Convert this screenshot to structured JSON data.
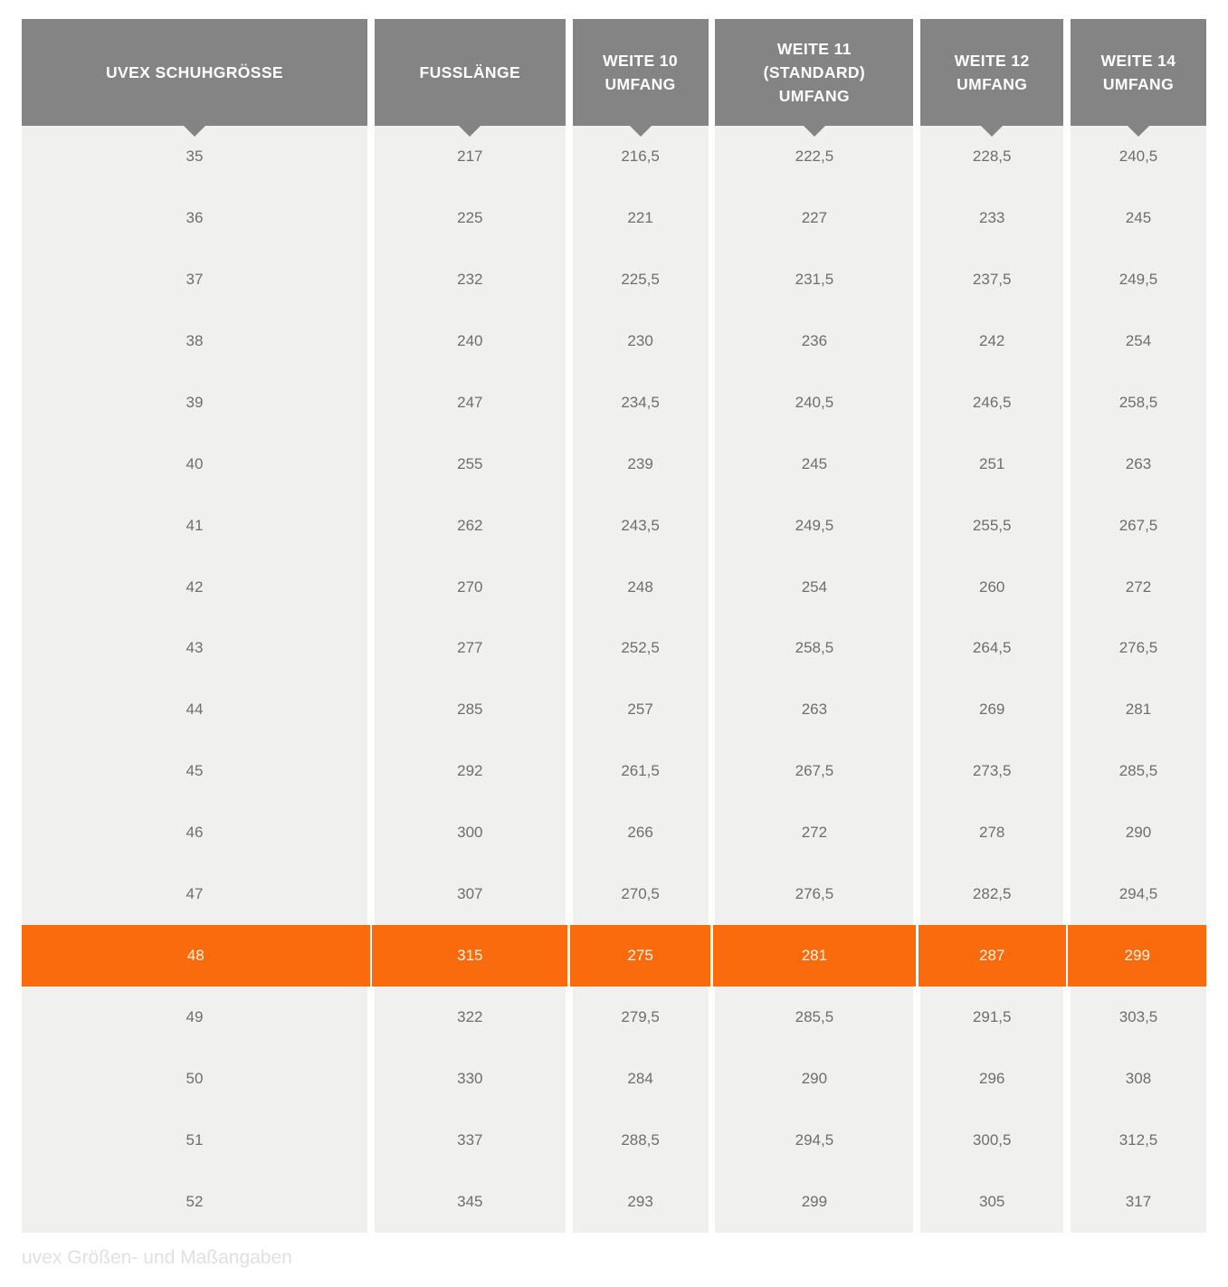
{
  "colors": {
    "page-bg": "#ffffff",
    "header-bg": "#848484",
    "header-text": "#ffffff",
    "row-bg": "#f0f0ef",
    "cell-text": "#6e6e6e",
    "highlight-bg": "#f96b0c",
    "highlight-text": "#fdf6ee",
    "caption-text": "#e0e0e0"
  },
  "table": {
    "headers": [
      {
        "id": "uvex-schuhgroesse",
        "label": "UVEX SCHUHGRÖSSE"
      },
      {
        "id": "fusslaenge",
        "label": "FUSSLÄNGE"
      },
      {
        "id": "weite-10-umfang",
        "label": "WEITE 10\nUMFANG"
      },
      {
        "id": "weite-11-standard-umfang",
        "label": "WEITE 11\n(STANDARD)\nUMFANG"
      },
      {
        "id": "weite-12-umfang",
        "label": "WEITE 12\nUMFANG"
      },
      {
        "id": "weite-14-umfang",
        "label": "WEITE 14\nUMFANG"
      }
    ],
    "rows": [
      {
        "size": "35",
        "foot_length": "217",
        "weite_10": "216,5",
        "weite_11": "222,5",
        "weite_12": "228,5",
        "weite_14": "240,5",
        "highlight": false
      },
      {
        "size": "36",
        "foot_length": "225",
        "weite_10": "221",
        "weite_11": "227",
        "weite_12": "233",
        "weite_14": "245",
        "highlight": false
      },
      {
        "size": "37",
        "foot_length": "232",
        "weite_10": "225,5",
        "weite_11": "231,5",
        "weite_12": "237,5",
        "weite_14": "249,5",
        "highlight": false
      },
      {
        "size": "38",
        "foot_length": "240",
        "weite_10": "230",
        "weite_11": "236",
        "weite_12": "242",
        "weite_14": "254",
        "highlight": false
      },
      {
        "size": "39",
        "foot_length": "247",
        "weite_10": "234,5",
        "weite_11": "240,5",
        "weite_12": "246,5",
        "weite_14": "258,5",
        "highlight": false
      },
      {
        "size": "40",
        "foot_length": "255",
        "weite_10": "239",
        "weite_11": "245",
        "weite_12": "251",
        "weite_14": "263",
        "highlight": false
      },
      {
        "size": "41",
        "foot_length": "262",
        "weite_10": "243,5",
        "weite_11": "249,5",
        "weite_12": "255,5",
        "weite_14": "267,5",
        "highlight": false
      },
      {
        "size": "42",
        "foot_length": "270",
        "weite_10": "248",
        "weite_11": "254",
        "weite_12": "260",
        "weite_14": "272",
        "highlight": false
      },
      {
        "size": "43",
        "foot_length": "277",
        "weite_10": "252,5",
        "weite_11": "258,5",
        "weite_12": "264,5",
        "weite_14": "276,5",
        "highlight": false
      },
      {
        "size": "44",
        "foot_length": "285",
        "weite_10": "257",
        "weite_11": "263",
        "weite_12": "269",
        "weite_14": "281",
        "highlight": false
      },
      {
        "size": "45",
        "foot_length": "292",
        "weite_10": "261,5",
        "weite_11": "267,5",
        "weite_12": "273,5",
        "weite_14": "285,5",
        "highlight": false
      },
      {
        "size": "46",
        "foot_length": "300",
        "weite_10": "266",
        "weite_11": "272",
        "weite_12": "278",
        "weite_14": "290",
        "highlight": false
      },
      {
        "size": "47",
        "foot_length": "307",
        "weite_10": "270,5",
        "weite_11": "276,5",
        "weite_12": "282,5",
        "weite_14": "294,5",
        "highlight": false
      },
      {
        "size": "48",
        "foot_length": "315",
        "weite_10": "275",
        "weite_11": "281",
        "weite_12": "287",
        "weite_14": "299",
        "highlight": true
      },
      {
        "size": "49",
        "foot_length": "322",
        "weite_10": "279,5",
        "weite_11": "285,5",
        "weite_12": "291,5",
        "weite_14": "303,5",
        "highlight": false
      },
      {
        "size": "50",
        "foot_length": "330",
        "weite_10": "284",
        "weite_11": "290",
        "weite_12": "296",
        "weite_14": "308",
        "highlight": false
      },
      {
        "size": "51",
        "foot_length": "337",
        "weite_10": "288,5",
        "weite_11": "294,5",
        "weite_12": "300,5",
        "weite_14": "312,5",
        "highlight": false
      },
      {
        "size": "52",
        "foot_length": "345",
        "weite_10": "293",
        "weite_11": "299",
        "weite_12": "305",
        "weite_14": "317",
        "highlight": false
      }
    ]
  },
  "caption": "uvex Größen- und Maßangaben"
}
